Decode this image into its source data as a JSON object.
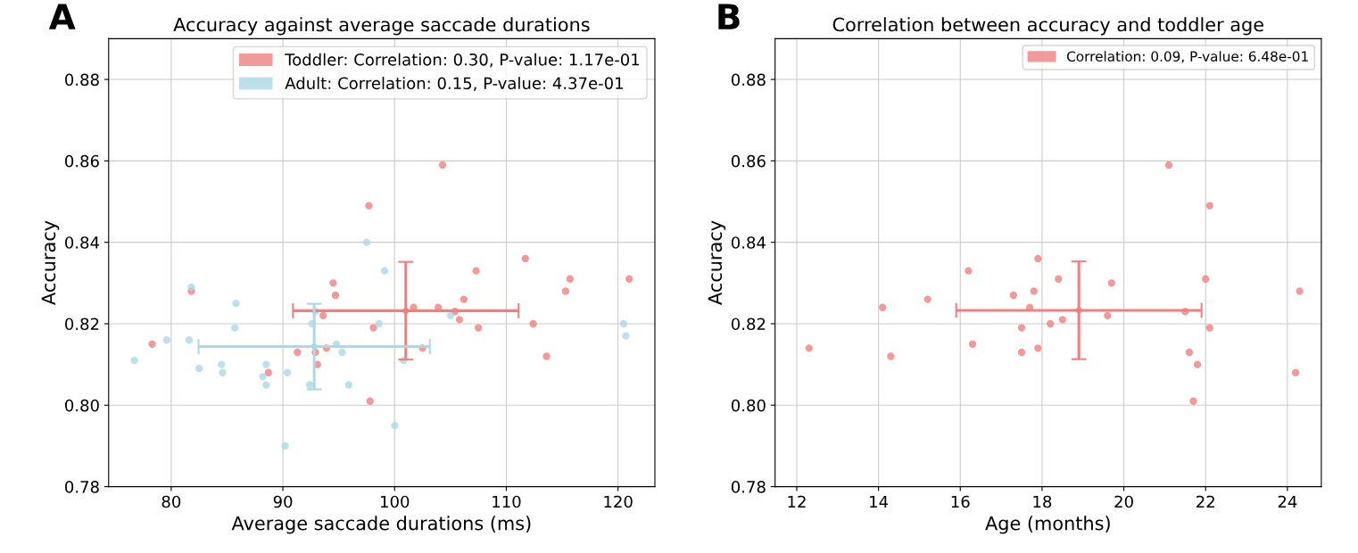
{
  "chart_data": [
    {
      "type": "scatter",
      "title": "Accuracy against average saccade durations",
      "xlabel": "Average saccade durations (ms)",
      "ylabel": "Accuracy",
      "annotations": [
        "A"
      ],
      "xlim": [
        74.4,
        123.3
      ],
      "xticks": [
        80,
        90,
        100,
        110,
        120
      ],
      "ylim": [
        0.78,
        0.89
      ],
      "yticks": [
        0.78,
        {
          "value": 0.8,
          "label": "0.80"
        },
        0.82,
        0.84,
        0.86,
        0.88
      ],
      "grid": true,
      "legend": "top right",
      "marker": "circle",
      "series": [
        {
          "name": "Toddler: Correlation: 0.30, P-value: 1.17e-01",
          "color": "#f08080",
          "x": [
            78.3,
            81.8,
            88.7,
            91.3,
            92.9,
            93.1,
            93.6,
            93.9,
            94.5,
            94.7,
            97.7,
            97.8,
            98.1,
            101.7,
            103.9,
            104.3,
            102.5,
            105.4,
            105.8,
            106.2,
            107.3,
            107.5,
            111.7,
            112.4,
            113.6,
            115.3,
            115.7,
            121.0
          ],
          "values": [
            0.815,
            0.828,
            0.808,
            0.813,
            0.813,
            0.81,
            0.822,
            0.814,
            0.83,
            0.827,
            0.849,
            0.801,
            0.819,
            0.824,
            0.824,
            0.859,
            0.814,
            0.823,
            0.821,
            0.826,
            0.833,
            0.819,
            0.836,
            0.82,
            0.812,
            0.828,
            0.831,
            0.831
          ]
        },
        {
          "name": "Adult: Correlation: 0.15, P-value: 4.37e-01",
          "color": "#add8e6",
          "x": [
            76.7,
            79.6,
            81.6,
            81.8,
            82.5,
            84.5,
            84.6,
            85.7,
            85.8,
            88.2,
            88.5,
            88.5,
            90.2,
            90.4,
            92.4,
            92.6,
            92.9,
            94.8,
            95.3,
            95.9,
            97.5,
            98.6,
            99.1,
            100.0,
            100.8,
            105.0,
            120.5,
            120.7
          ],
          "values": [
            0.811,
            0.816,
            0.816,
            0.829,
            0.809,
            0.81,
            0.808,
            0.819,
            0.825,
            0.807,
            0.81,
            0.805,
            0.79,
            0.808,
            0.805,
            0.82,
            0.823,
            0.815,
            0.813,
            0.805,
            0.84,
            0.82,
            0.833,
            0.795,
            0.811,
            0.822,
            0.82,
            0.817
          ]
        },
        {
          "color": "#f08080",
          "marker": "none",
          "x": [
            101.0
          ],
          "values": [
            0.8232
          ],
          "errors": [
            0.012
          ],
          "xerrors": [
            10.1
          ]
        },
        {
          "color": "#add8e6",
          "marker": "none",
          "x": [
            92.8
          ],
          "values": [
            0.8144
          ],
          "errors": [
            0.0105
          ],
          "xerrors": [
            10.35
          ]
        }
      ]
    },
    {
      "type": "scatter",
      "title": "Correlation between accuracy and toddler age",
      "xlabel": "Age (months)",
      "ylabel": "Accuracy",
      "annotations": [
        "B"
      ],
      "xlim": [
        11.47,
        24.83
      ],
      "xticks": [
        12,
        14,
        16,
        18,
        20,
        22,
        24
      ],
      "ylim": [
        0.78,
        0.89
      ],
      "yticks": [
        0.78,
        {
          "value": 0.8,
          "label": "0.80"
        },
        0.82,
        0.84,
        0.86,
        0.88
      ],
      "grid": true,
      "legend": "top right",
      "marker": "circle",
      "series": [
        {
          "name": "Correlation: 0.09, P-value: 6.48e-01",
          "color": "#f08080",
          "x": [
            12.3,
            14.1,
            14.3,
            15.2,
            16.2,
            16.3,
            17.3,
            17.5,
            17.5,
            17.7,
            17.8,
            17.9,
            17.9,
            18.2,
            18.4,
            18.5,
            19.6,
            19.7,
            21.1,
            21.5,
            21.6,
            21.7,
            21.8,
            22.0,
            22.1,
            22.1,
            24.2,
            24.3
          ],
          "values": [
            0.814,
            0.824,
            0.812,
            0.826,
            0.833,
            0.815,
            0.827,
            0.819,
            0.813,
            0.824,
            0.828,
            0.836,
            0.814,
            0.82,
            0.831,
            0.821,
            0.822,
            0.83,
            0.859,
            0.823,
            0.813,
            0.801,
            0.81,
            0.831,
            0.849,
            0.819,
            0.808,
            0.828
          ]
        },
        {
          "color": "#f08080",
          "marker": "none",
          "x": [
            18.9
          ],
          "values": [
            0.8233
          ],
          "errors": [
            0.012
          ],
          "xerrors": [
            3.0
          ]
        }
      ]
    }
  ]
}
